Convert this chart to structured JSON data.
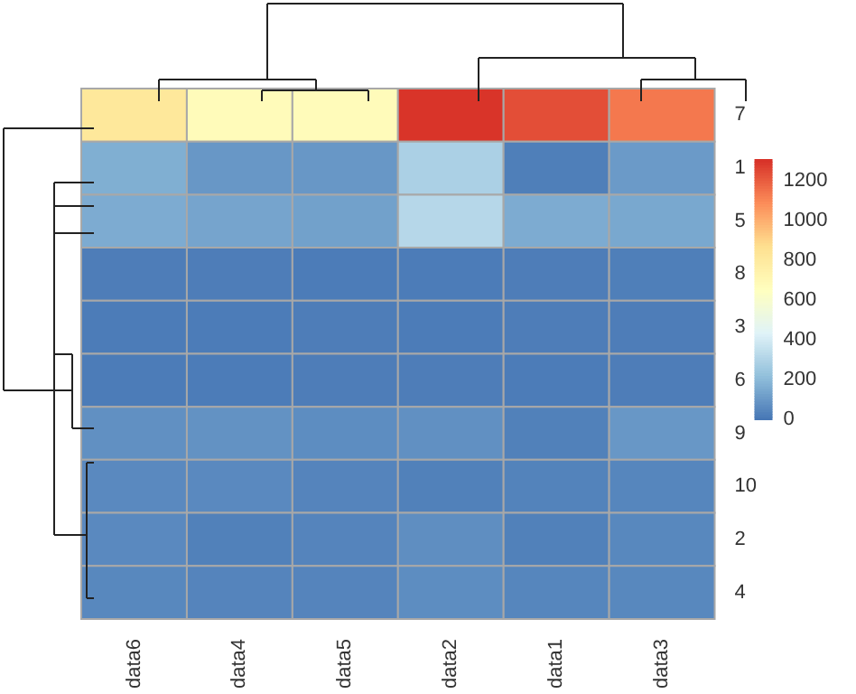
{
  "chart_data": {
    "type": "heatmap",
    "categories": [
      "data6",
      "data4",
      "data5",
      "data2",
      "data1",
      "data3"
    ],
    "y_categories": [
      "7",
      "1",
      "5",
      "8",
      "3",
      "6",
      "9",
      "10",
      "2",
      "4"
    ],
    "cells": [
      [
        820,
        680,
        680,
        1300,
        1240,
        1140
      ],
      [
        170,
        100,
        100,
        290,
        30,
        110
      ],
      [
        160,
        140,
        130,
        320,
        160,
        150
      ],
      [
        25,
        25,
        20,
        20,
        25,
        30
      ],
      [
        20,
        20,
        25,
        20,
        25,
        25
      ],
      [
        20,
        20,
        25,
        25,
        20,
        25
      ],
      [
        80,
        85,
        70,
        80,
        35,
        100
      ],
      [
        60,
        60,
        45,
        35,
        40,
        50
      ],
      [
        60,
        35,
        45,
        75,
        35,
        55
      ],
      [
        55,
        45,
        45,
        70,
        50,
        55
      ]
    ],
    "clim": [
      0,
      1310
    ],
    "cticks": [
      0,
      200,
      400,
      600,
      800,
      1000,
      1200
    ]
  }
}
